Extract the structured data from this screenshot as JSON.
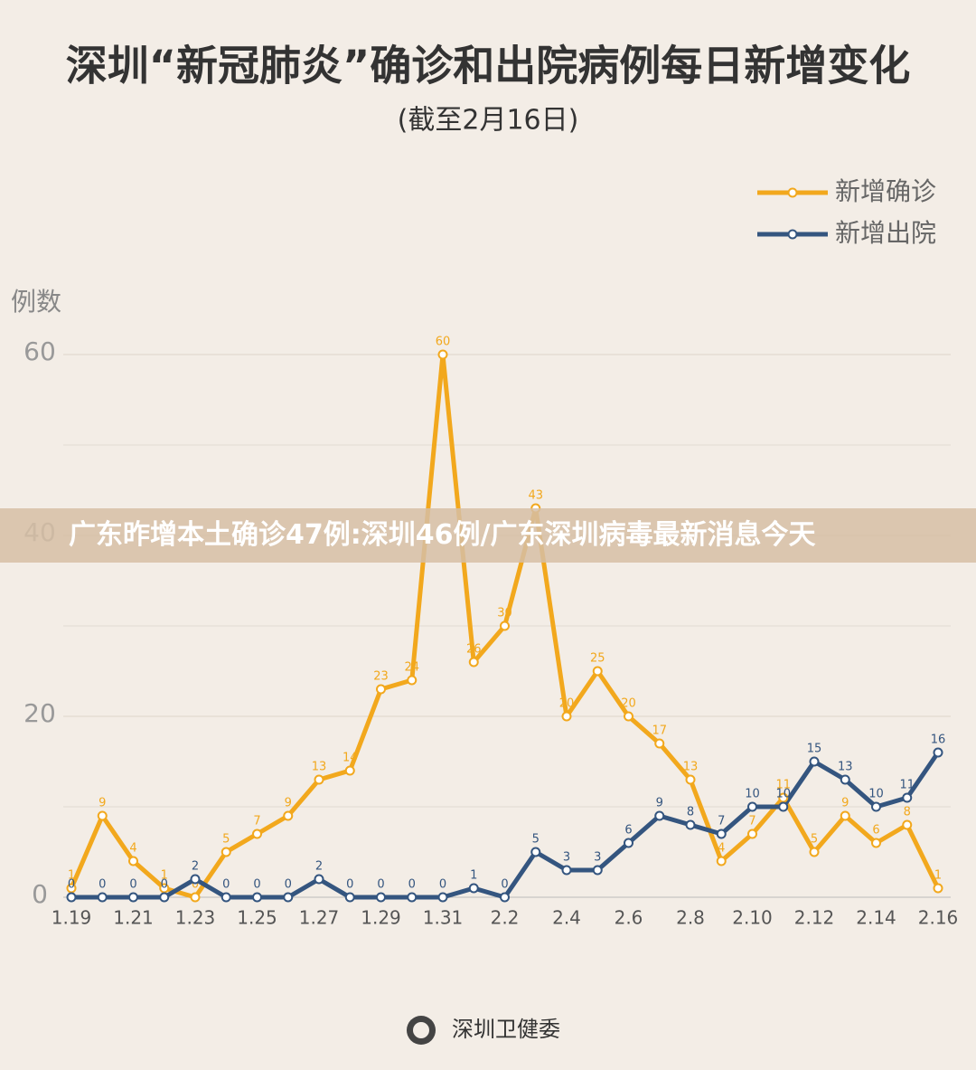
{
  "chart_data": {
    "type": "line",
    "title": "深圳“新冠肺炎”确诊和出院病例每日新增变化",
    "subtitle": "(截至2月16日)",
    "y_label": "例数",
    "source": "深圳卫健委",
    "banner": "广东昨增本土确诊47例:深圳46例/广东深圳病毒最新消息今天",
    "categories": [
      "1.19",
      null,
      "1.21",
      null,
      "1.23",
      null,
      "1.25",
      null,
      "1.27",
      null,
      "1.29",
      null,
      "1.31",
      null,
      "2.2",
      null,
      "2.4",
      null,
      "2.6",
      null,
      "2.8",
      null,
      "2.10",
      null,
      "2.12",
      null,
      "2.14",
      null,
      "2.16"
    ],
    "series": [
      {
        "name": "新增确诊",
        "color": "#f2a81d",
        "values": [
          1,
          9,
          4,
          1,
          0,
          5,
          7,
          9,
          13,
          14,
          23,
          24,
          60,
          26,
          30,
          43,
          20,
          25,
          20,
          17,
          13,
          4,
          7,
          11,
          5,
          9,
          6,
          8,
          1
        ]
      },
      {
        "name": "新增出院",
        "color": "#34557f",
        "values": [
          0,
          0,
          0,
          0,
          2,
          0,
          0,
          0,
          2,
          0,
          0,
          0,
          0,
          1,
          0,
          5,
          3,
          3,
          6,
          9,
          8,
          7,
          10,
          10,
          15,
          13,
          10,
          11,
          16
        ]
      }
    ],
    "ylim": [
      0,
      60
    ],
    "yticks": [
      0,
      20,
      40,
      60
    ],
    "minor_yticks": [
      10,
      30,
      50
    ],
    "grid": true,
    "legend": "top-right"
  }
}
